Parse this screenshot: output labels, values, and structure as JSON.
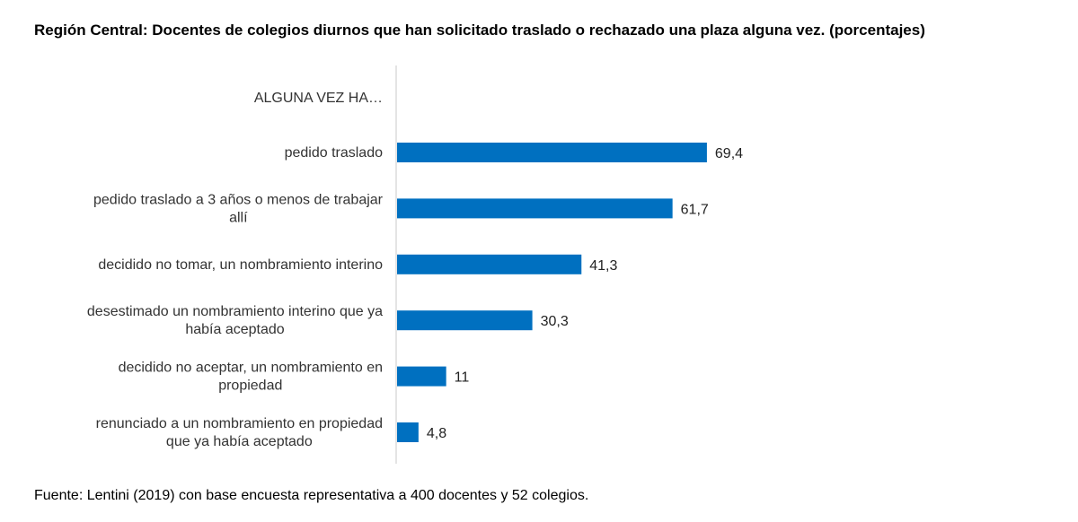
{
  "chart_data": {
    "type": "bar",
    "orientation": "horizontal",
    "title": "Región Central: Docentes de colegios diurnos que han solicitado traslado o rechazado una plaza alguna vez.  (porcentajes)",
    "group_header": "ALGUNA VEZ HA…",
    "categories": [
      [
        "pedido traslado"
      ],
      [
        "pedido traslado a 3 años o menos de trabajar",
        "allí"
      ],
      [
        "decidido no tomar, un nombramiento interino"
      ],
      [
        "desestimado un nombramiento interino que ya",
        "había aceptado"
      ],
      [
        "decidido no aceptar, un nombramiento en",
        "propiedad"
      ],
      [
        "renunciado a un nombramiento en propiedad",
        "que ya había aceptado"
      ]
    ],
    "values": [
      69.4,
      61.7,
      41.3,
      30.3,
      11,
      4.8
    ],
    "value_labels": [
      "69,4",
      "61,7",
      "41,3",
      "30,3",
      "11",
      "4,8"
    ],
    "xlim": [
      0,
      100
    ],
    "bar_color": "#0070C0",
    "axis_color": "#c8c8c8",
    "grid": false,
    "legend": "none"
  },
  "source": "Fuente: Lentini (2019) con base encuesta representativa a 400 docentes y 52 colegios."
}
